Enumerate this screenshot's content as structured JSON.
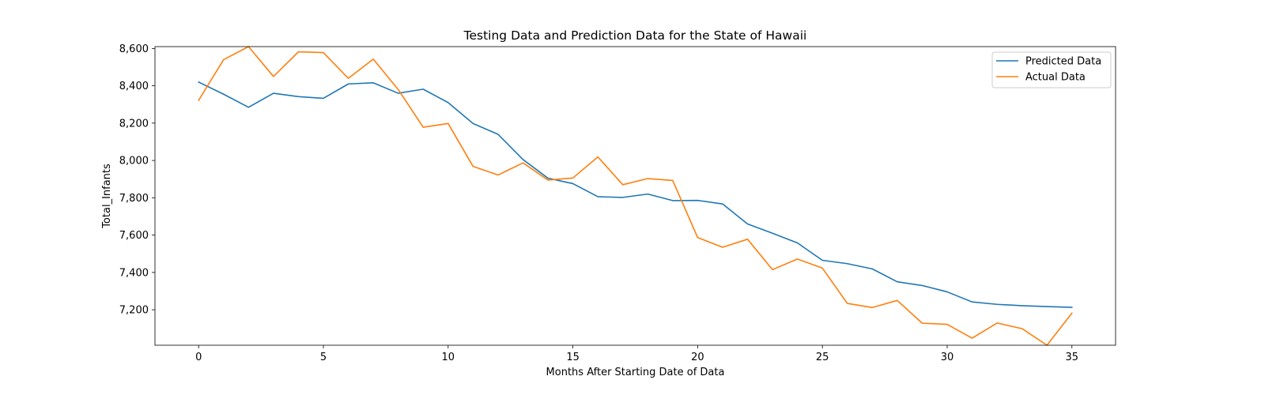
{
  "chart_data": {
    "type": "line",
    "title": "Testing Data and Prediction Data for the State of Hawaii",
    "xlabel": "Months After Starting Date of Data",
    "ylabel": "Total_Infants",
    "xlim": [
      -1.75,
      36.75
    ],
    "ylim": [
      7010,
      8610
    ],
    "x_ticks": [
      0,
      5,
      10,
      15,
      20,
      25,
      30,
      35
    ],
    "y_ticks": [
      7200,
      7400,
      7600,
      7800,
      8000,
      8200,
      8400,
      8600
    ],
    "y_tick_labels": [
      "7,200",
      "7,400",
      "7,600",
      "7,800",
      "8,000",
      "8,200",
      "8,400",
      "8,600"
    ],
    "grid": false,
    "legend_position": "top-right",
    "x": [
      0,
      1,
      2,
      3,
      4,
      5,
      6,
      7,
      8,
      9,
      10,
      11,
      12,
      13,
      14,
      15,
      16,
      17,
      18,
      19,
      20,
      21,
      22,
      23,
      24,
      25,
      26,
      27,
      28,
      29,
      30,
      31,
      32,
      33,
      34,
      35
    ],
    "series": [
      {
        "name": "Predicted Data",
        "color": "#1f77b4",
        "values": [
          8420,
          8355,
          8285,
          8360,
          8342,
          8333,
          8410,
          8416,
          8360,
          8382,
          8310,
          8198,
          8140,
          8005,
          7905,
          7876,
          7806,
          7802,
          7820,
          7785,
          7786,
          7767,
          7660,
          7610,
          7558,
          7465,
          7447,
          7419,
          7350,
          7330,
          7296,
          7242,
          7229,
          7222,
          7217,
          7213
        ]
      },
      {
        "name": "Actual Data",
        "color": "#ff7f0e",
        "values": [
          8322,
          8540,
          8610,
          8450,
          8582,
          8578,
          8440,
          8543,
          8380,
          8178,
          8198,
          7968,
          7922,
          7987,
          7895,
          7906,
          8019,
          7870,
          7903,
          7893,
          7587,
          7535,
          7578,
          7415,
          7472,
          7423,
          7234,
          7212,
          7250,
          7128,
          7122,
          7048,
          7129,
          7099,
          7010,
          7182
        ]
      }
    ]
  }
}
